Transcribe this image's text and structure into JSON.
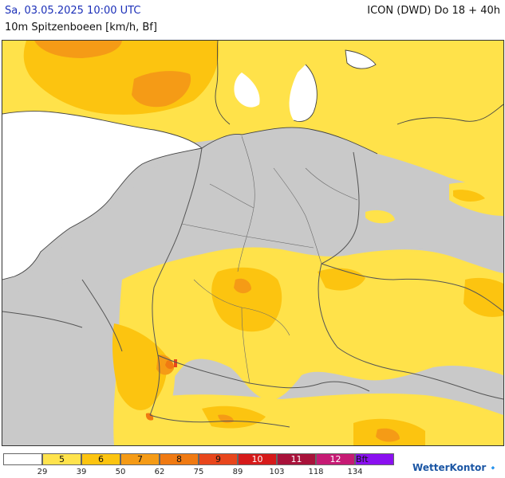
{
  "header": {
    "date": "Sa, 03.05.2025 10:00 UTC",
    "model": "ICON (DWD) Do 18 + 40h",
    "parameter": "10m Spitzenboeen [km/h, Bf]"
  },
  "legend": {
    "boxes": [
      {
        "label": "",
        "color": "#ffffff"
      },
      {
        "label": "5",
        "color": "#ffe34d"
      },
      {
        "label": "6",
        "color": "#fcc410"
      },
      {
        "label": "7",
        "color": "#f59b16"
      },
      {
        "label": "8",
        "color": "#f07a12"
      },
      {
        "label": "9",
        "color": "#e8461c"
      },
      {
        "label": "10",
        "color": "#d61a1a"
      },
      {
        "label": "11",
        "color": "#a8123a"
      },
      {
        "label": "12",
        "color": "#c61a74"
      },
      {
        "label": "Bft",
        "color": "#8a10f0"
      }
    ],
    "thresholds": [
      "29",
      "39",
      "50",
      "62",
      "75",
      "89",
      "103",
      "118",
      "134"
    ]
  },
  "brand": {
    "name": "WetterKontor",
    "logo_icon": "wind-logo-icon"
  }
}
